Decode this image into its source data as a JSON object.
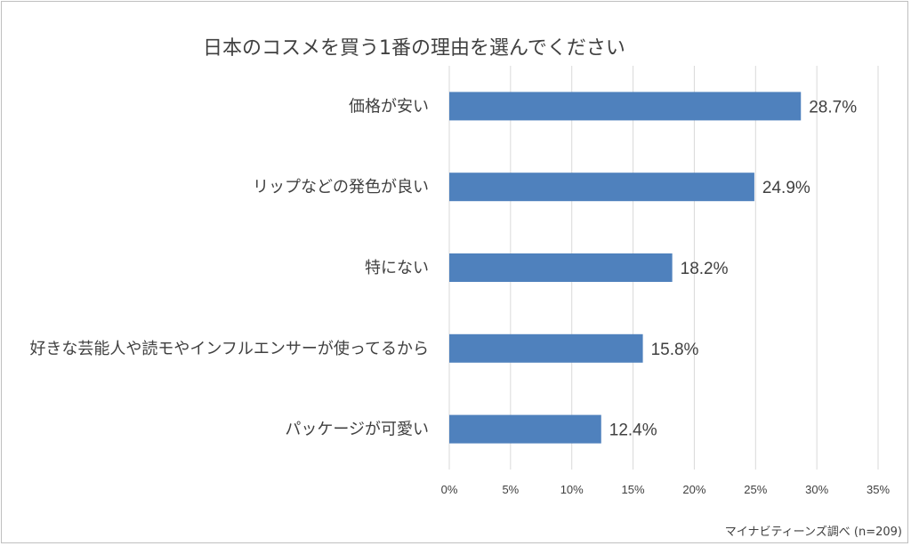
{
  "chart_data": {
    "type": "bar",
    "orientation": "horizontal",
    "title": "日本のコスメを買う1番の理由を選んでください",
    "categories": [
      "価格が安い",
      "リップなどの発色が良い",
      "特にない",
      "好きな芸能人や読モやインフルエンサーが使ってるから",
      "パッケージが可愛い"
    ],
    "values": [
      28.7,
      24.9,
      18.2,
      15.8,
      12.4
    ],
    "data_labels": [
      "28.7%",
      "24.9%",
      "18.2%",
      "15.8%",
      "12.4%"
    ],
    "xlim": [
      0,
      35
    ],
    "xticks": [
      0,
      5,
      10,
      15,
      20,
      25,
      30,
      35
    ],
    "xtick_labels": [
      "0%",
      "5%",
      "10%",
      "15%",
      "20%",
      "25%",
      "30%",
      "35%"
    ],
    "grid": true,
    "bar_color": "#4f81bd",
    "grid_color": "#d9d9d9"
  },
  "footer": {
    "source": "マイナビティーンズ調べ (n=209)"
  }
}
